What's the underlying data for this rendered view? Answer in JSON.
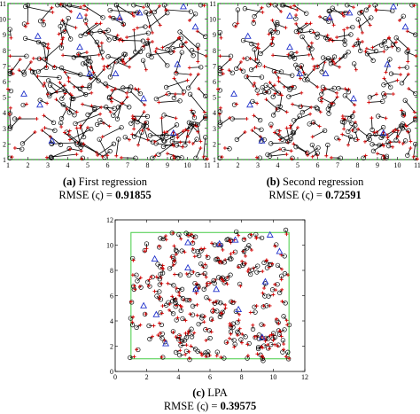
{
  "chart_data": [
    {
      "type": "scatter",
      "panel_tag": "(a)",
      "caption": "First regression",
      "metric_label": "RMSE (ς) =",
      "metric_value": "0.91855",
      "xlim": [
        1,
        11
      ],
      "ylim": [
        1,
        11
      ],
      "xticks": [
        1,
        2,
        3,
        4,
        5,
        6,
        7,
        8,
        9,
        10,
        11
      ],
      "yticks": [
        1,
        2,
        3,
        4,
        5,
        6,
        7,
        8,
        9,
        10,
        11
      ],
      "legend": "none",
      "grid": false,
      "boundary": "green dashed square [1,11]×[1,11]",
      "colors": {
        "estimate": "#000000",
        "true_position": "#d40000",
        "anchor": "#2233cc",
        "boundary": "#22aa22",
        "error_line": "#000000"
      },
      "anchors": [
        [
          4.6,
          10.2
        ],
        [
          6.6,
          10.1
        ],
        [
          7.6,
          10.4
        ],
        [
          9.8,
          10.8
        ],
        [
          2.5,
          8.9
        ],
        [
          4.6,
          8.2
        ],
        [
          5.1,
          6.5
        ],
        [
          9.5,
          7.1
        ],
        [
          6.4,
          6.5
        ],
        [
          2.6,
          4.5
        ],
        [
          9.3,
          2.7
        ],
        [
          3.2,
          2.2
        ],
        [
          1.8,
          5.2
        ],
        [
          7.8,
          4.9
        ],
        [
          10.4,
          9.5
        ]
      ],
      "error_scale": "large"
    },
    {
      "type": "scatter",
      "panel_tag": "(b)",
      "caption": "Second regression",
      "metric_label": "RMSE (ς) =",
      "metric_value": "0.72591",
      "xlim": [
        1,
        11
      ],
      "ylim": [
        1,
        11
      ],
      "xticks": [
        1,
        2,
        3,
        4,
        5,
        6,
        7,
        8,
        9,
        10,
        11
      ],
      "yticks": [
        1,
        2,
        3,
        4,
        5,
        6,
        7,
        8,
        9,
        10,
        11
      ],
      "legend": "none",
      "grid": false,
      "boundary": "green dashed square [1,11]×[1,11]",
      "colors": {
        "estimate": "#000000",
        "true_position": "#d40000",
        "anchor": "#2233cc",
        "boundary": "#22aa22",
        "error_line": "#000000"
      },
      "anchors": [
        [
          4.6,
          10.2
        ],
        [
          6.6,
          10.1
        ],
        [
          7.6,
          10.4
        ],
        [
          9.8,
          10.8
        ],
        [
          2.5,
          8.9
        ],
        [
          4.6,
          8.2
        ],
        [
          5.1,
          6.5
        ],
        [
          9.5,
          7.1
        ],
        [
          6.4,
          6.5
        ],
        [
          2.6,
          4.5
        ],
        [
          9.3,
          2.7
        ],
        [
          3.2,
          2.2
        ],
        [
          1.8,
          5.2
        ],
        [
          7.8,
          4.9
        ],
        [
          10.4,
          9.5
        ]
      ],
      "error_scale": "medium"
    },
    {
      "type": "scatter",
      "panel_tag": "(c)",
      "caption": "LPA",
      "metric_label": "RMSE (ς) =",
      "metric_value": "0.39575",
      "xlim": [
        0,
        12
      ],
      "ylim": [
        0,
        12
      ],
      "xticks": [
        0,
        2,
        4,
        6,
        8,
        10,
        12
      ],
      "yticks": [
        0,
        2,
        4,
        6,
        8,
        10,
        12
      ],
      "legend": "none",
      "grid": false,
      "boundary": "green solid square [1,11]×[1,11]",
      "colors": {
        "estimate": "#000000",
        "true_position": "#d40000",
        "anchor": "#2233cc",
        "boundary": "#44cc44",
        "error_line": "#000000"
      },
      "anchors": [
        [
          4.6,
          10.2
        ],
        [
          6.6,
          10.1
        ],
        [
          7.6,
          10.4
        ],
        [
          9.8,
          10.8
        ],
        [
          2.5,
          8.9
        ],
        [
          4.6,
          8.2
        ],
        [
          5.1,
          6.5
        ],
        [
          9.5,
          7.1
        ],
        [
          6.4,
          6.5
        ],
        [
          2.6,
          4.5
        ],
        [
          9.3,
          2.7
        ],
        [
          3.2,
          2.2
        ],
        [
          1.8,
          5.2
        ],
        [
          7.8,
          4.9
        ],
        [
          10.4,
          9.5
        ]
      ],
      "error_scale": "small"
    }
  ]
}
